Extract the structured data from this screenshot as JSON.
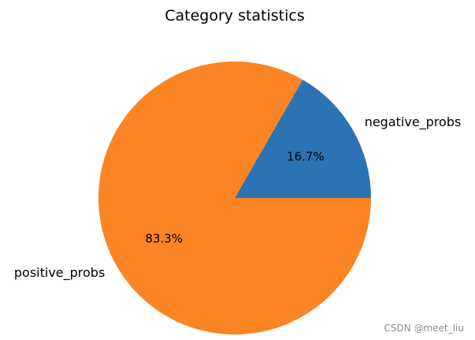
{
  "chart_data": {
    "type": "pie",
    "title": "Category statistics",
    "slices": [
      {
        "label": "negative_probs",
        "value": 16.7,
        "pct_label": "16.7%",
        "color": "#2c73b4"
      },
      {
        "label": "positive_probs",
        "value": 83.3,
        "pct_label": "83.3%",
        "color": "#fb8424"
      }
    ],
    "start_angle_deg": 0,
    "direction": "counterclockwise"
  },
  "watermark": "CSDN @meet_liu"
}
